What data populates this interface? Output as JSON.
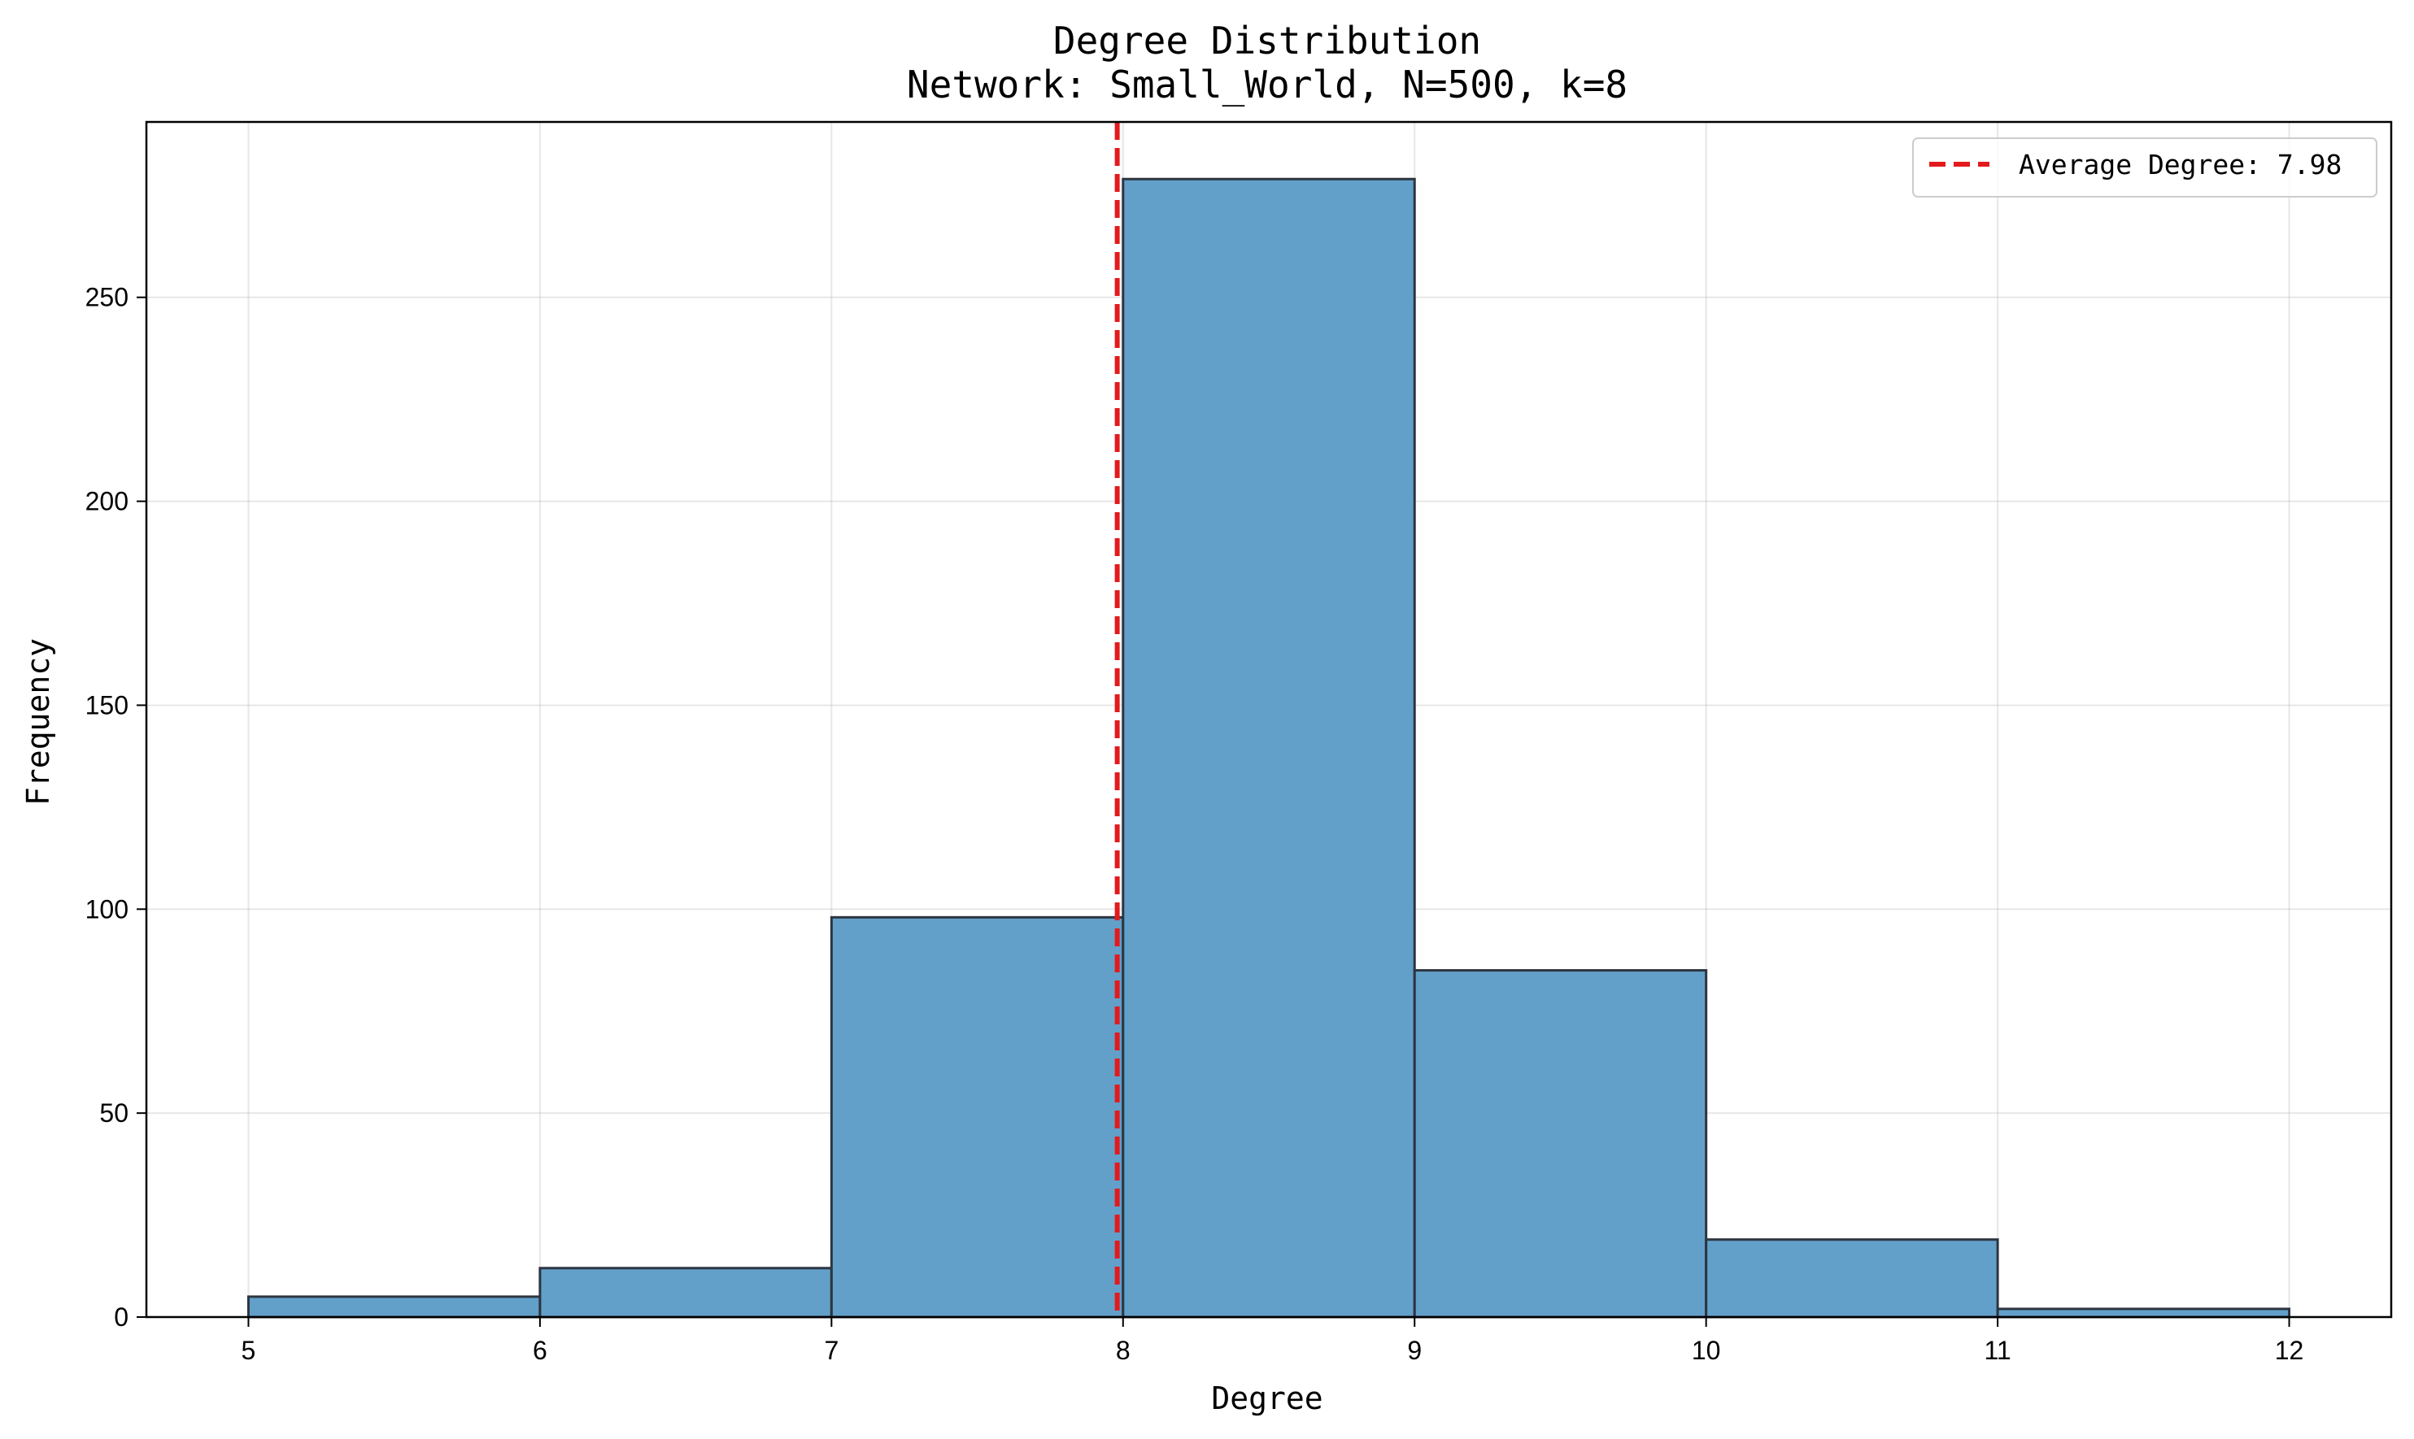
{
  "chart_data": {
    "type": "bar",
    "title": "Degree Distribution",
    "subtitle": "Network: Small_World, N=500, k=8",
    "xlabel": "Degree",
    "ylabel": "Frequency",
    "bins": [
      {
        "start": 5,
        "end": 6,
        "count": 5
      },
      {
        "start": 6,
        "end": 7,
        "count": 12
      },
      {
        "start": 7,
        "end": 8,
        "count": 98
      },
      {
        "start": 8,
        "end": 9,
        "count": 279
      },
      {
        "start": 9,
        "end": 10,
        "count": 85
      },
      {
        "start": 10,
        "end": 11,
        "count": 19
      },
      {
        "start": 11,
        "end": 12,
        "count": 2
      }
    ],
    "xticks": [
      5,
      6,
      7,
      8,
      9,
      10,
      11,
      12
    ],
    "yticks": [
      0,
      50,
      100,
      150,
      200,
      250
    ],
    "xlim": [
      4.65,
      12.35
    ],
    "ylim": [
      0,
      293
    ],
    "reference_line": {
      "x": 7.98,
      "label": "Average Degree: 7.98",
      "color": "#e31a1c",
      "style": "dashed"
    },
    "bar_color": "#62a0ca",
    "edge_color": "#2d3540",
    "grid": true,
    "legend_position": "top-right"
  }
}
